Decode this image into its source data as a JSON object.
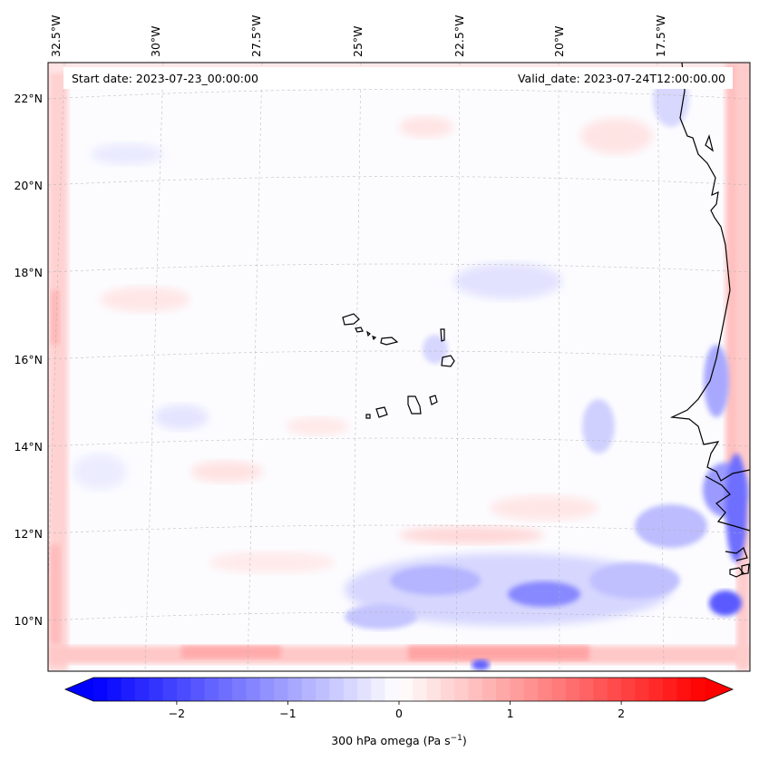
{
  "header": {
    "start_date": "Start date: 2023-07-23_00:00:00",
    "valid_date": "Valid_date: 2023-07-24T12:00:00.00"
  },
  "lon_labels": [
    "32.5°W",
    "30°W",
    "27.5°W",
    "25°W",
    "22.5°W",
    "20°W",
    "17.5°W"
  ],
  "lat_labels": [
    "22°N",
    "20°N",
    "18°N",
    "16°N",
    "14°N",
    "12°N",
    "10°N"
  ],
  "colorbar": {
    "title": "300 hPa omega (Pa s",
    "title_exp": "−1",
    "title_close": ")",
    "ticks": [
      "−2",
      "−1",
      "0",
      "1",
      "2"
    ],
    "range": [
      -2.75,
      2.75
    ],
    "cmap": "bwr",
    "extend": "both"
  },
  "map": {
    "field": "300 hPa omega",
    "units": "Pa s-1",
    "lon_range": [
      -33.0,
      -15.7
    ],
    "lat_range": [
      8.8,
      22.8
    ],
    "gridlines": true,
    "colors": {
      "neg": "#0000ff",
      "zero": "#ffffff",
      "pos": "#ff0000",
      "coast": "#000000"
    }
  }
}
